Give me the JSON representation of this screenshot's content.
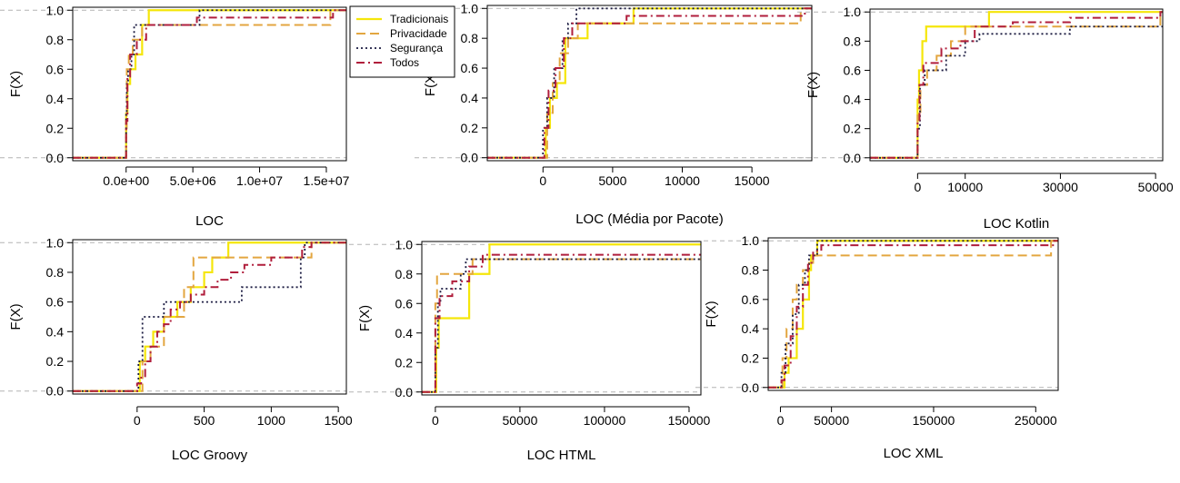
{
  "figure": {
    "background": "#ffffff"
  },
  "legend": {
    "entries": [
      {
        "name": "Tradicionais",
        "color": "#f5e60a",
        "dash": "solid"
      },
      {
        "name": "Privacidade",
        "color": "#e3a640",
        "dash": "dashed"
      },
      {
        "name": "Segurança",
        "color": "#1a1a40",
        "dash": "dotted"
      },
      {
        "name": "Todos",
        "color": "#b01e3c",
        "dash": "dashdot"
      }
    ]
  },
  "chart_data": [
    {
      "type": "line",
      "subtype": "ecdf",
      "xlabel": "LOC",
      "ylabel": "F(X)",
      "xlim": [
        -4000000,
        16500000
      ],
      "ylim": [
        -0.02,
        1.02
      ],
      "xticks": [
        0,
        5000000,
        10000000,
        15000000
      ],
      "xticklabels": [
        "0.0e+00",
        "5.0e+06",
        "1.0e+07",
        "1.5e+07"
      ],
      "yticks": [
        0,
        0.2,
        0.4,
        0.6,
        0.8,
        1.0
      ],
      "yticklabels": [
        "0.0",
        "0.2",
        "0.4",
        "0.6",
        "0.8",
        "1.0"
      ],
      "reference_lines": [
        0,
        1
      ],
      "series": [
        {
          "name": "Tradicionais",
          "x": [
            0,
            100000,
            300000,
            700000,
            1200000,
            1700000
          ],
          "y": [
            0.3,
            0.5,
            0.6,
            0.7,
            0.9,
            1.0
          ]
        },
        {
          "name": "Privacidade",
          "x": [
            0,
            50000,
            200000,
            500000,
            1200000,
            15300000
          ],
          "y": [
            0.2,
            0.6,
            0.7,
            0.8,
            0.9,
            1.0
          ]
        },
        {
          "name": "Segurança",
          "x": [
            0,
            50000,
            150000,
            400000,
            600000,
            900000,
            5500000
          ],
          "y": [
            0.3,
            0.5,
            0.6,
            0.7,
            0.9,
            0.9,
            1.0
          ]
        },
        {
          "name": "Todos",
          "x": [
            0,
            100000,
            300000,
            800000,
            1500000,
            5300000,
            15500000
          ],
          "y": [
            0.25,
            0.55,
            0.7,
            0.8,
            0.9,
            0.95,
            1.0
          ]
        }
      ]
    },
    {
      "type": "line",
      "subtype": "ecdf",
      "xlabel": "LOC (Média por Pacote)",
      "ylabel": "F(X)",
      "xlim": [
        -4000,
        19300
      ],
      "ylim": [
        -0.02,
        1.02
      ],
      "xticks": [
        0,
        5000,
        10000,
        15000
      ],
      "xticklabels": [
        "0",
        "5000",
        "10000",
        "15000"
      ],
      "yticks": [
        0,
        0.2,
        0.4,
        0.6,
        0.8,
        1.0
      ],
      "yticklabels": [
        "0.0",
        "0.2",
        "0.4",
        "0.6",
        "0.8",
        "1.0"
      ],
      "reference_lines": [
        0,
        1
      ],
      "series": [
        {
          "name": "Tradicionais",
          "x": [
            200,
            500,
            1000,
            1600,
            3200,
            6500
          ],
          "y": [
            0.2,
            0.4,
            0.5,
            0.8,
            0.9,
            1.0
          ]
        },
        {
          "name": "Privacidade",
          "x": [
            300,
            700,
            1200,
            1800,
            2500,
            18500
          ],
          "y": [
            0.3,
            0.5,
            0.7,
            0.8,
            0.9,
            1.0
          ]
        },
        {
          "name": "Segurança",
          "x": [
            0,
            300,
            800,
            1400,
            1800,
            2400
          ],
          "y": [
            0.2,
            0.4,
            0.6,
            0.8,
            0.9,
            1.0
          ]
        },
        {
          "name": "Todos",
          "x": [
            100,
            400,
            900,
            1500,
            2100,
            6000,
            18800
          ],
          "y": [
            0.2,
            0.45,
            0.6,
            0.8,
            0.9,
            0.95,
            1.0
          ]
        }
      ]
    },
    {
      "type": "line",
      "subtype": "ecdf",
      "xlabel": "LOC Kotlin",
      "ylabel": "F(X)",
      "xlim": [
        -10000,
        51500
      ],
      "ylim": [
        -0.02,
        1.02
      ],
      "xticks": [
        0,
        10000,
        30000,
        50000
      ],
      "xticklabels": [
        "0",
        "10000",
        "30000",
        "50000"
      ],
      "yticks": [
        0,
        0.2,
        0.4,
        0.6,
        0.8,
        1.0
      ],
      "yticklabels": [
        "0.0",
        "0.2",
        "0.4",
        "0.6",
        "0.8",
        "1.0"
      ],
      "reference_lines": [
        0,
        1
      ],
      "series": [
        {
          "name": "Tradicionais",
          "x": [
            0,
            300,
            1000,
            1800,
            15000
          ],
          "y": [
            0.4,
            0.6,
            0.8,
            0.9,
            1.0
          ]
        },
        {
          "name": "Privacidade",
          "x": [
            0,
            600,
            2000,
            4000,
            7000,
            10000,
            51000
          ],
          "y": [
            0.3,
            0.5,
            0.6,
            0.7,
            0.8,
            0.9,
            1.0
          ]
        },
        {
          "name": "Segurança",
          "x": [
            0,
            500,
            1500,
            6000,
            10000,
            13000,
            32000
          ],
          "y": [
            0.2,
            0.5,
            0.6,
            0.7,
            0.8,
            0.85,
            0.9
          ]
        },
        {
          "name": "Todos",
          "x": [
            0,
            400,
            1200,
            5000,
            9000,
            12000,
            20000,
            32000,
            51000
          ],
          "y": [
            0.25,
            0.5,
            0.65,
            0.75,
            0.8,
            0.9,
            0.93,
            0.96,
            1.0
          ]
        }
      ]
    },
    {
      "type": "line",
      "subtype": "ecdf",
      "xlabel": "LOC Groovy",
      "ylabel": "F(X)",
      "xlim": [
        -480,
        1560
      ],
      "ylim": [
        -0.02,
        1.02
      ],
      "xticks": [
        0,
        500,
        1000,
        1500
      ],
      "xticklabels": [
        "0",
        "500",
        "1000",
        "1500"
      ],
      "yticks": [
        0,
        0.2,
        0.4,
        0.6,
        0.8,
        1.0
      ],
      "yticklabels": [
        "0.0",
        "0.2",
        "0.4",
        "0.6",
        "0.8",
        "1.0"
      ],
      "reference_lines": [
        0,
        1
      ],
      "series": [
        {
          "name": "Tradicionais",
          "x": [
            20,
            60,
            120,
            200,
            300,
            400,
            500,
            560,
            680
          ],
          "y": [
            0.2,
            0.3,
            0.4,
            0.5,
            0.6,
            0.7,
            0.8,
            0.9,
            1.0
          ]
        },
        {
          "name": "Privacidade",
          "x": [
            40,
            100,
            200,
            350,
            420,
            1300
          ],
          "y": [
            0.2,
            0.3,
            0.5,
            0.7,
            0.9,
            1.0
          ]
        },
        {
          "name": "Segurança",
          "x": [
            10,
            40,
            200,
            780,
            1220,
            1250
          ],
          "y": [
            0.2,
            0.5,
            0.6,
            0.7,
            0.9,
            1.0
          ]
        },
        {
          "name": "Todos",
          "x": [
            0,
            30,
            60,
            100,
            150,
            200,
            250,
            320,
            400,
            500,
            600,
            700,
            800,
            1000,
            1230,
            1300
          ],
          "y": [
            0.05,
            0.1,
            0.2,
            0.3,
            0.4,
            0.45,
            0.55,
            0.6,
            0.65,
            0.7,
            0.75,
            0.8,
            0.85,
            0.9,
            0.97,
            1.0
          ]
        }
      ]
    },
    {
      "type": "line",
      "subtype": "ecdf",
      "xlabel": "LOC HTML",
      "ylabel": "F(X)",
      "xlim": [
        -8000,
        157000
      ],
      "ylim": [
        -0.02,
        1.02
      ],
      "xticks": [
        0,
        50000,
        100000,
        150000
      ],
      "xticklabels": [
        "0",
        "50000",
        "100000",
        "150000"
      ],
      "yticks": [
        0,
        0.2,
        0.4,
        0.6,
        0.8,
        1.0
      ],
      "yticklabels": [
        "0.0",
        "0.2",
        "0.4",
        "0.6",
        "0.8",
        "1.0"
      ],
      "reference_lines": [
        0,
        1
      ],
      "series": [
        {
          "name": "Tradicionais",
          "x": [
            500,
            2000,
            20000,
            32000
          ],
          "y": [
            0.3,
            0.5,
            0.8,
            1.0
          ]
        },
        {
          "name": "Privacidade",
          "x": [
            0,
            1000,
            22000,
            30000
          ],
          "y": [
            0.6,
            0.8,
            0.9,
            0.9
          ]
        },
        {
          "name": "Segurança",
          "x": [
            0,
            1500,
            3000,
            15000,
            18000,
            24000,
            30000
          ],
          "y": [
            0.3,
            0.6,
            0.7,
            0.8,
            0.9,
            0.9,
            0.9
          ]
        },
        {
          "name": "Todos",
          "x": [
            0,
            2500,
            10000,
            20000,
            28000
          ],
          "y": [
            0.5,
            0.65,
            0.75,
            0.85,
            0.93
          ]
        }
      ]
    },
    {
      "type": "line",
      "subtype": "ecdf",
      "xlabel": "LOC XML",
      "ylabel": "F(X)",
      "xlim": [
        -12000,
        272000
      ],
      "ylim": [
        -0.02,
        1.02
      ],
      "xticks": [
        0,
        50000,
        150000,
        250000
      ],
      "xticklabels": [
        "0",
        "50000",
        "150000",
        "250000"
      ],
      "yticks": [
        0,
        0.2,
        0.4,
        0.6,
        0.8,
        1.0
      ],
      "yticklabels": [
        "0.0",
        "0.2",
        "0.4",
        "0.6",
        "0.8",
        "1.0"
      ],
      "reference_lines": [
        0,
        1
      ],
      "series": [
        {
          "name": "Tradicionais",
          "x": [
            4000,
            8000,
            16000,
            22000,
            28000,
            30000,
            36000
          ],
          "y": [
            0.1,
            0.2,
            0.4,
            0.6,
            0.8,
            0.9,
            1.0
          ]
        },
        {
          "name": "Privacidade",
          "x": [
            2000,
            6000,
            12000,
            16000,
            22000,
            28000,
            32000,
            265000
          ],
          "y": [
            0.2,
            0.4,
            0.6,
            0.7,
            0.8,
            0.85,
            0.9,
            1.0
          ]
        },
        {
          "name": "Segurança",
          "x": [
            1000,
            5000,
            12000,
            18000,
            24000,
            28000,
            36000
          ],
          "y": [
            0.1,
            0.3,
            0.5,
            0.7,
            0.8,
            0.9,
            1.0
          ]
        },
        {
          "name": "Todos",
          "x": [
            1000,
            4000,
            10000,
            16000,
            22000,
            27000,
            32000,
            40000,
            268000
          ],
          "y": [
            0.05,
            0.15,
            0.35,
            0.55,
            0.7,
            0.85,
            0.93,
            0.97,
            1.0
          ]
        }
      ]
    }
  ]
}
